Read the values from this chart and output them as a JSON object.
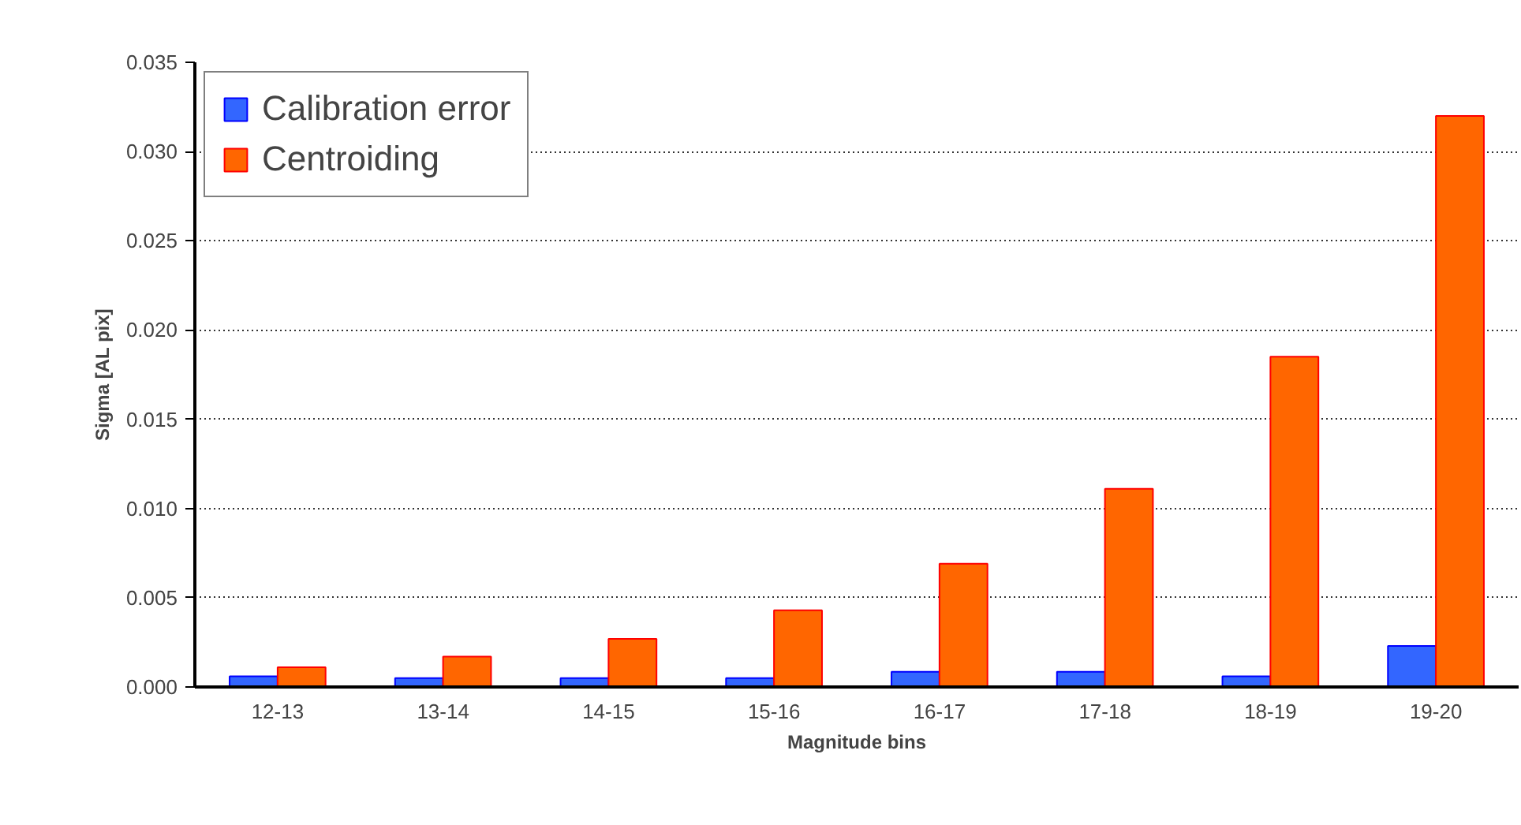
{
  "chart_data": {
    "type": "bar",
    "xlabel": "Magnitude bins",
    "ylabel": "Sigma [AL pix]",
    "categories": [
      "12-13",
      "13-14",
      "14-15",
      "15-16",
      "16-17",
      "17-18",
      "18-19",
      "19-20"
    ],
    "series": [
      {
        "name": "Calibration error",
        "color": "#3366ff",
        "values": [
          0.0006,
          0.0005,
          0.0005,
          0.0005,
          0.00085,
          0.00085,
          0.0006,
          0.0023
        ]
      },
      {
        "name": "Centroiding",
        "color": "#ff6600",
        "values": [
          0.0011,
          0.0017,
          0.0027,
          0.0043,
          0.0069,
          0.0111,
          0.0185,
          0.032
        ]
      }
    ],
    "ylim": [
      0,
      0.035
    ],
    "yticks": [
      {
        "value": 0,
        "label": "0.000"
      },
      {
        "value": 0.005,
        "label": "0.005"
      },
      {
        "value": 0.01,
        "label": "0.010"
      },
      {
        "value": 0.015,
        "label": "0.015"
      },
      {
        "value": 0.02,
        "label": "0.020"
      },
      {
        "value": 0.025,
        "label": "0.025"
      },
      {
        "value": 0.03,
        "label": "0.030"
      },
      {
        "value": 0.035,
        "label": "0.035"
      }
    ],
    "grid": "y",
    "legend": "top left"
  }
}
